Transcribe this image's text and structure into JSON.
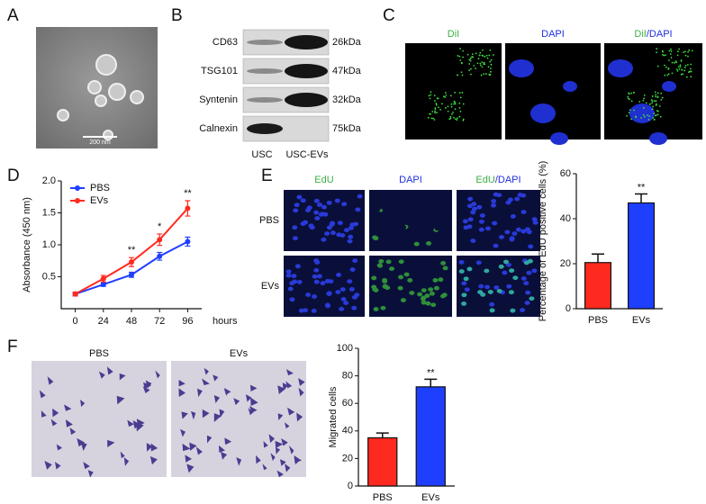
{
  "panels": [
    "A",
    "B",
    "C",
    "D",
    "E",
    "F"
  ],
  "tem": {
    "scale_bar": "200 nm"
  },
  "blot": {
    "proteins": [
      {
        "name": "CD63",
        "size": "26kDa"
      },
      {
        "name": "TSG101",
        "size": "47kDa"
      },
      {
        "name": "Syntenin",
        "size": "32kDa"
      },
      {
        "name": "Calnexin",
        "size": "75kDa"
      }
    ],
    "lanes": [
      "USC",
      "USC-EVs"
    ]
  },
  "fluorescence": {
    "channels": [
      {
        "parts": [
          "DiI"
        ],
        "colors": [
          "#3cb043"
        ]
      },
      {
        "parts": [
          "DAPI"
        ],
        "colors": [
          "#2030e0"
        ]
      },
      {
        "parts": [
          "DiI",
          "/DAPI"
        ],
        "colors": [
          "#3cb043",
          "#2030e0"
        ]
      }
    ]
  },
  "edu_images": {
    "channels": [
      {
        "parts": [
          "EdU"
        ],
        "colors": [
          "#3cb043"
        ]
      },
      {
        "parts": [
          "DAPI"
        ],
        "colors": [
          "#2030e0"
        ]
      },
      {
        "parts": [
          "EdU",
          "/DAPI"
        ],
        "colors": [
          "#3cb043",
          "#2030e0"
        ]
      }
    ],
    "rows": [
      "PBS",
      "EVs"
    ]
  },
  "transwell": {
    "conditions": [
      "PBS",
      "EVs"
    ]
  },
  "chart_data": [
    {
      "type": "line",
      "ylabel": "Absorbance (450 nm)",
      "xlabel": "hours",
      "x": [
        0,
        24,
        48,
        72,
        96
      ],
      "xlim": [
        -12,
        108
      ],
      "xticks": [
        0,
        24,
        48,
        72,
        96
      ],
      "ylim": [
        0,
        2.0
      ],
      "yticks": [
        0.5,
        {
          "value": 1.0,
          "label": "1.0"
        },
        1.5,
        {
          "value": 2.0,
          "label": "2.0"
        }
      ],
      "legend": "upper left",
      "series": [
        {
          "name": "PBS",
          "color": "#1f3fff",
          "values": [
            0.23,
            0.38,
            0.53,
            0.82,
            1.05
          ],
          "errors": [
            0.03,
            0.03,
            0.04,
            0.06,
            0.07
          ]
        },
        {
          "name": "EVs",
          "color": "#ff2a1f",
          "values": [
            0.23,
            0.47,
            0.73,
            1.08,
            1.57
          ],
          "errors": [
            0.03,
            0.05,
            0.07,
            0.09,
            0.12
          ]
        }
      ],
      "annotations": [
        {
          "x": 48,
          "text": "**"
        },
        {
          "x": 72,
          "text": "*"
        },
        {
          "x": 96,
          "text": "**"
        }
      ]
    },
    {
      "type": "bar",
      "ylabel": "Percentage of EdU positive cells (%)",
      "categories": [
        "PBS",
        "EVs"
      ],
      "values": [
        20.5,
        47
      ],
      "errors": [
        3.8,
        4
      ],
      "colors": [
        "#ff2a1f",
        "#1f3fff"
      ],
      "ylim": [
        0,
        60
      ],
      "yticks": [
        0,
        20,
        40,
        60
      ],
      "annotations": [
        {
          "category": "EVs",
          "text": "**"
        }
      ]
    },
    {
      "type": "bar",
      "ylabel": "Migrated cells",
      "categories": [
        "PBS",
        "EVs"
      ],
      "values": [
        35,
        72
      ],
      "errors": [
        3.5,
        5.5
      ],
      "colors": [
        "#ff2a1f",
        "#1f3fff"
      ],
      "ylim": [
        0,
        100
      ],
      "yticks": [
        0,
        20,
        40,
        60,
        80,
        100
      ],
      "annotations": [
        {
          "category": "EVs",
          "text": "**"
        }
      ]
    }
  ]
}
